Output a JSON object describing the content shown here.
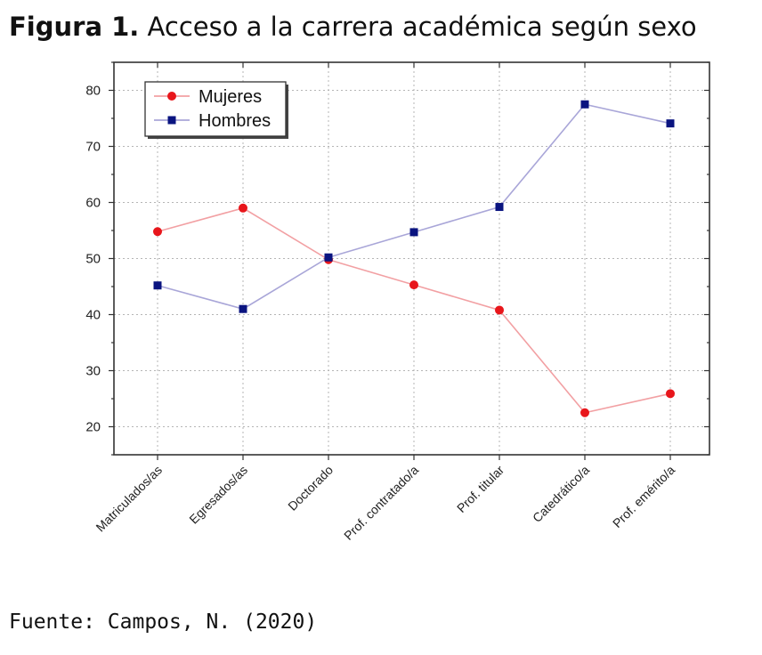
{
  "figure": {
    "label": "Figura 1.",
    "title": "Acceso a la carrera académica según sexo",
    "source": "Fuente: Campos, N. (2020)"
  },
  "chart_data": {
    "type": "line",
    "categories": [
      "Matriculados/as",
      "Egresados/as",
      "Doctorado",
      "Prof. contratado/a",
      "Prof. titular",
      "Catedrático/a",
      "Prof. emérito/a"
    ],
    "series": [
      {
        "name": "Mujeres",
        "values": [
          54.8,
          59.0,
          49.8,
          45.3,
          40.8,
          22.5,
          25.9
        ],
        "color": "#e8161b",
        "line_color": "#f2a0a3",
        "marker": "circle"
      },
      {
        "name": "Hombres",
        "values": [
          45.2,
          41.0,
          50.2,
          54.7,
          59.2,
          77.5,
          74.1
        ],
        "color": "#0a1480",
        "line_color": "#a9a6d8",
        "marker": "square"
      }
    ],
    "yticks": [
      20,
      30,
      40,
      50,
      60,
      70,
      80
    ],
    "ylim": [
      15,
      85
    ],
    "grid": true,
    "legend_position": "top-left",
    "xlabel": "",
    "ylabel": ""
  }
}
